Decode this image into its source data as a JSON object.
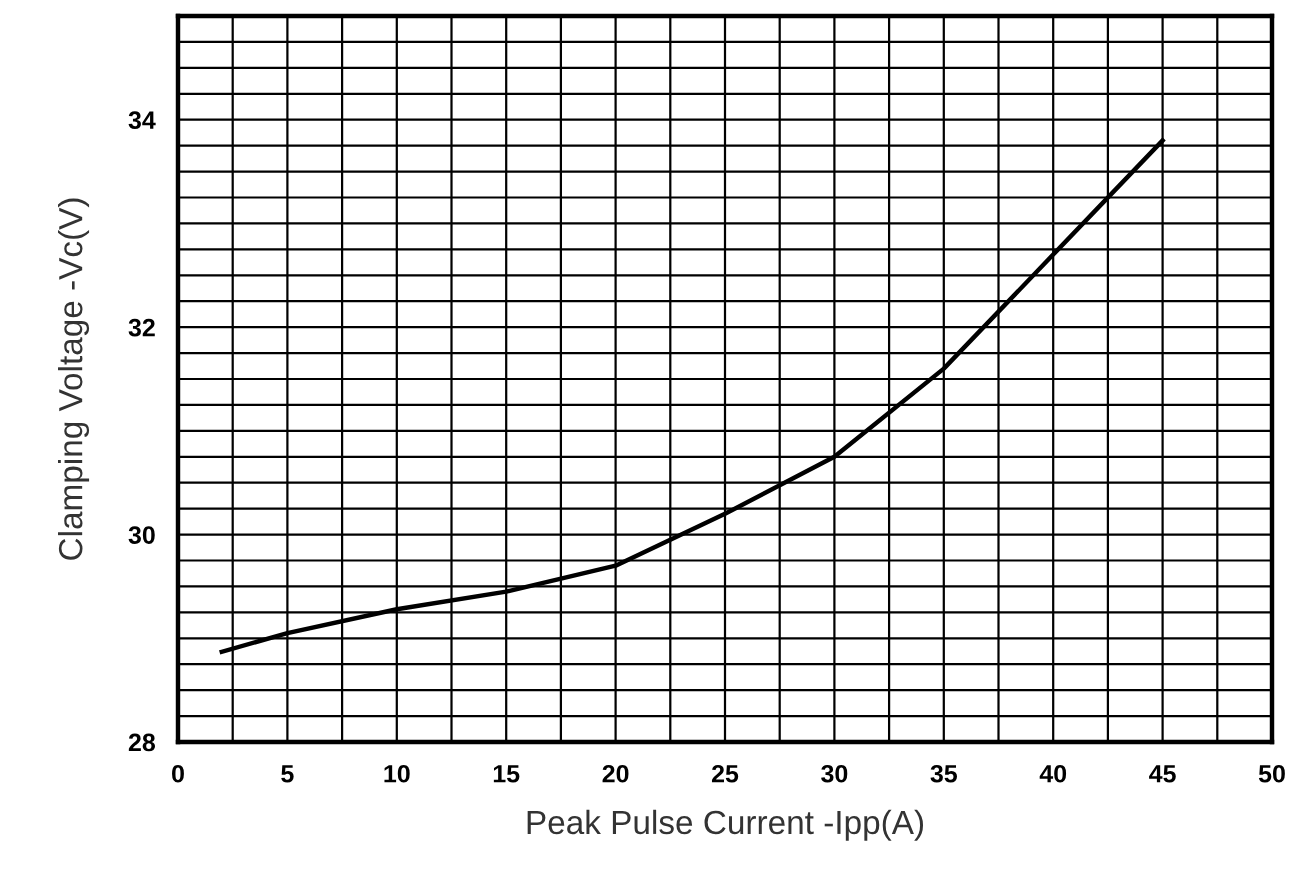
{
  "chart_data": {
    "type": "line",
    "xlabel": "Peak Pulse Current -Ipp(A)",
    "ylabel": "Clamping Voltage -Vc(V)",
    "x": [
      2,
      5,
      10,
      15,
      20,
      22.5,
      25,
      30,
      35,
      40,
      45
    ],
    "series": [
      {
        "color": "#000000",
        "values": [
          28.87,
          29.05,
          29.28,
          29.45,
          29.7,
          29.95,
          30.2,
          30.75,
          31.6,
          32.7,
          33.8
        ]
      }
    ],
    "xlim": [
      0,
      50
    ],
    "ylim": [
      28,
      35
    ],
    "xticks": [
      0,
      {
        "value": 2.5,
        "label": null
      },
      5,
      {
        "value": 7.5,
        "label": null
      },
      10,
      {
        "value": 12.5,
        "label": null
      },
      15,
      {
        "value": 17.5,
        "label": null
      },
      20,
      {
        "value": 22.5,
        "label": null
      },
      25,
      {
        "value": 27.5,
        "label": null
      },
      30,
      {
        "value": 32.5,
        "label": null
      },
      35,
      {
        "value": 37.5,
        "label": null
      },
      40,
      {
        "value": 42.5,
        "label": null
      },
      45,
      {
        "value": 47.5,
        "label": null
      },
      50
    ],
    "yticks": [
      28,
      {
        "value": 28.25,
        "label": null
      },
      {
        "value": 28.5,
        "label": null
      },
      {
        "value": 28.75,
        "label": null
      },
      {
        "value": 29,
        "label": null
      },
      {
        "value": 29.25,
        "label": null
      },
      {
        "value": 29.5,
        "label": null
      },
      {
        "value": 29.75,
        "label": null
      },
      30,
      {
        "value": 30.25,
        "label": null
      },
      {
        "value": 30.5,
        "label": null
      },
      {
        "value": 30.75,
        "label": null
      },
      {
        "value": 31,
        "label": null
      },
      {
        "value": 31.25,
        "label": null
      },
      {
        "value": 31.5,
        "label": null
      },
      {
        "value": 31.75,
        "label": null
      },
      32,
      {
        "value": 32.25,
        "label": null
      },
      {
        "value": 32.5,
        "label": null
      },
      {
        "value": 32.75,
        "label": null
      },
      {
        "value": 33,
        "label": null
      },
      {
        "value": 33.25,
        "label": null
      },
      {
        "value": 33.5,
        "label": null
      },
      {
        "value": 33.75,
        "label": null
      },
      34,
      {
        "value": 34.25,
        "label": null
      },
      {
        "value": 34.5,
        "label": null
      },
      {
        "value": 34.75,
        "label": null
      }
    ],
    "grid": true,
    "marker": "none",
    "line_style": "solid"
  }
}
